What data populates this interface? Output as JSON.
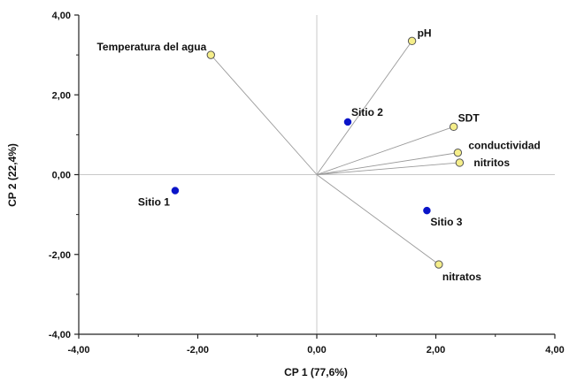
{
  "chart_data": {
    "type": "scatter",
    "subtype": "biplot",
    "xlabel": "CP 1 (77,6%)",
    "ylabel": "CP 2 (22,4%)",
    "xlim": [
      -4,
      4
    ],
    "ylim": [
      -4,
      4
    ],
    "xticks": [
      "-4,00",
      "-2,00",
      "0,00",
      "2,00",
      "4,00"
    ],
    "yticks": [
      "-4,00",
      "-2,00",
      "0,00",
      "2,00",
      "4,00"
    ],
    "zero_lines": true,
    "grid": false,
    "colors": {
      "sites": "#0a14c8",
      "variables": "#f5ee8a",
      "variable_stroke": "#555555",
      "vector_line": "#9a9a9a",
      "zero_line": "#c8c8c8",
      "axis": "#222222"
    },
    "sites": [
      {
        "label": "Sitio 1",
        "x": -2.38,
        "y": -0.4
      },
      {
        "label": "Sitio 2",
        "x": 0.52,
        "y": 1.32
      },
      {
        "label": "Sitio 3",
        "x": 1.85,
        "y": -0.9
      }
    ],
    "variables": [
      {
        "label": "Temperatura del agua",
        "x": -1.78,
        "y": 3.0
      },
      {
        "label": "pH",
        "x": 1.6,
        "y": 3.35
      },
      {
        "label": "SDT",
        "x": 2.3,
        "y": 1.2
      },
      {
        "label": "conductividad",
        "x": 2.37,
        "y": 0.55
      },
      {
        "label": "nitritos",
        "x": 2.4,
        "y": 0.3
      },
      {
        "label": "nitratos",
        "x": 2.05,
        "y": -2.25
      }
    ]
  }
}
